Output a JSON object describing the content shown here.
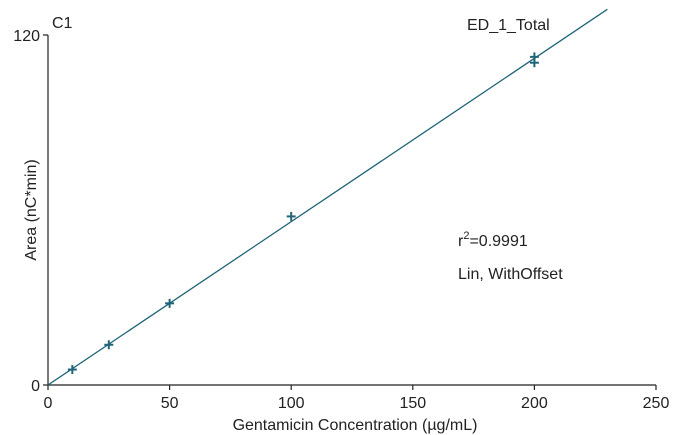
{
  "chart_data": {
    "type": "scatter",
    "panel_label": "C1",
    "title": "ED_1_Total",
    "xlabel": "Gentamicin Concentration (µg/mL)",
    "ylabel": "Area (nC*min)",
    "xlim": [
      0,
      250
    ],
    "ylim": [
      0,
      120
    ],
    "x_ticks": [
      "0",
      "50",
      "100",
      "150",
      "200",
      "250"
    ],
    "y_ticks": [
      "0",
      "120"
    ],
    "grid": false,
    "series": [
      {
        "points": [
          {
            "x": 10,
            "y": 5.3
          },
          {
            "x": 25,
            "y": 13.8
          },
          {
            "x": 50,
            "y": 28.0
          },
          {
            "x": 100,
            "y": 57.8
          },
          {
            "x": 200,
            "y": 112.5
          },
          {
            "x": 200,
            "y": 110.5
          }
        ]
      }
    ],
    "fit_line": {
      "type": "Lin, WithOffset",
      "points": [
        {
          "x": 0,
          "y": 0
        },
        {
          "x": 230,
          "y": 128.8
        }
      ]
    },
    "annotations": {
      "r2_prefix": "r",
      "r2_exp": "2",
      "r2_value": "=0.9991",
      "fit_type": "Lin, WithOffset"
    },
    "colors": {
      "series": "#1f6478",
      "axis": "#222222"
    }
  }
}
